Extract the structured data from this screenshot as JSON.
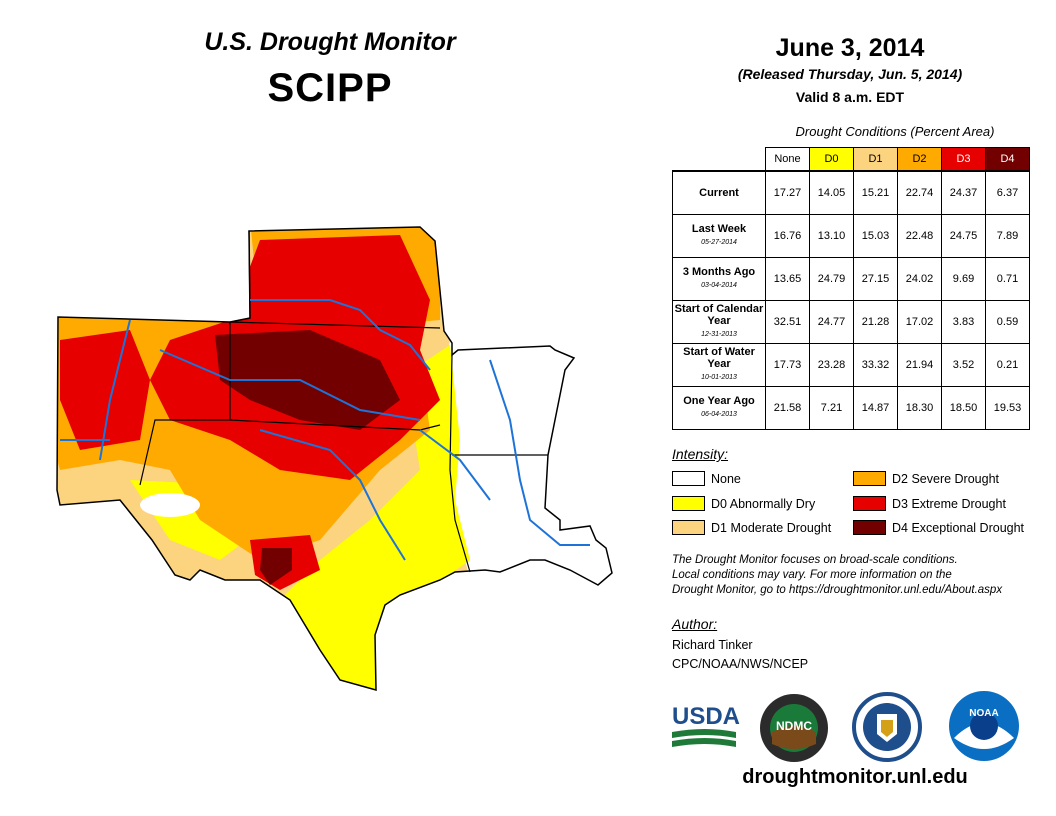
{
  "header": {
    "title": "U.S. Drought Monitor",
    "region": "SCIPP",
    "date": "June 3, 2014",
    "released": "(Released Thursday, Jun. 5, 2014)",
    "valid": "Valid 8 a.m. EDT"
  },
  "table": {
    "caption": "Drought Conditions (Percent Area)",
    "columns": [
      "None",
      "D0",
      "D1",
      "D2",
      "D3",
      "D4"
    ],
    "rows": [
      {
        "label": "Current",
        "sub": "",
        "values": [
          "17.27",
          "14.05",
          "15.21",
          "22.74",
          "24.37",
          "6.37"
        ]
      },
      {
        "label": "Last Week",
        "sub": "05-27-2014",
        "values": [
          "16.76",
          "13.10",
          "15.03",
          "22.48",
          "24.75",
          "7.89"
        ]
      },
      {
        "label": "3 Months Ago",
        "sub": "03-04-2014",
        "values": [
          "13.65",
          "24.79",
          "27.15",
          "24.02",
          "9.69",
          "0.71"
        ]
      },
      {
        "label": "Start of Calendar Year",
        "sub": "12-31-2013",
        "values": [
          "32.51",
          "24.77",
          "21.28",
          "17.02",
          "3.83",
          "0.59"
        ]
      },
      {
        "label": "Start of Water Year",
        "sub": "10-01-2013",
        "values": [
          "17.73",
          "23.28",
          "33.32",
          "21.94",
          "3.52",
          "0.21"
        ]
      },
      {
        "label": "One Year Ago",
        "sub": "06-04-2013",
        "values": [
          "21.58",
          "7.21",
          "14.87",
          "18.30",
          "18.50",
          "19.53"
        ]
      }
    ]
  },
  "legend": {
    "title": "Intensity:",
    "items": [
      {
        "label": "None",
        "color": "#ffffff"
      },
      {
        "label": "D0 Abnormally Dry",
        "color": "#ffff00"
      },
      {
        "label": "D1 Moderate Drought",
        "color": "#fcd37f"
      },
      {
        "label": "D2 Severe Drought",
        "color": "#ffaa00"
      },
      {
        "label": "D3 Extreme Drought",
        "color": "#e60000"
      },
      {
        "label": "D4 Exceptional Drought",
        "color": "#730000"
      }
    ]
  },
  "note": {
    "line1": "The Drought Monitor focuses on broad-scale conditions.",
    "line2": "Local conditions may vary. For more information on the",
    "line3": "Drought Monitor, go to https://droughtmonitor.unl.edu/About.aspx"
  },
  "author": {
    "title": "Author:",
    "name": "Richard Tinker",
    "org": "CPC/NOAA/NWS/NCEP"
  },
  "logos": {
    "usda": "USDA",
    "ndmc": "NDMC",
    "noaa": "NOAA"
  },
  "site": "droughtmonitor.unl.edu"
}
